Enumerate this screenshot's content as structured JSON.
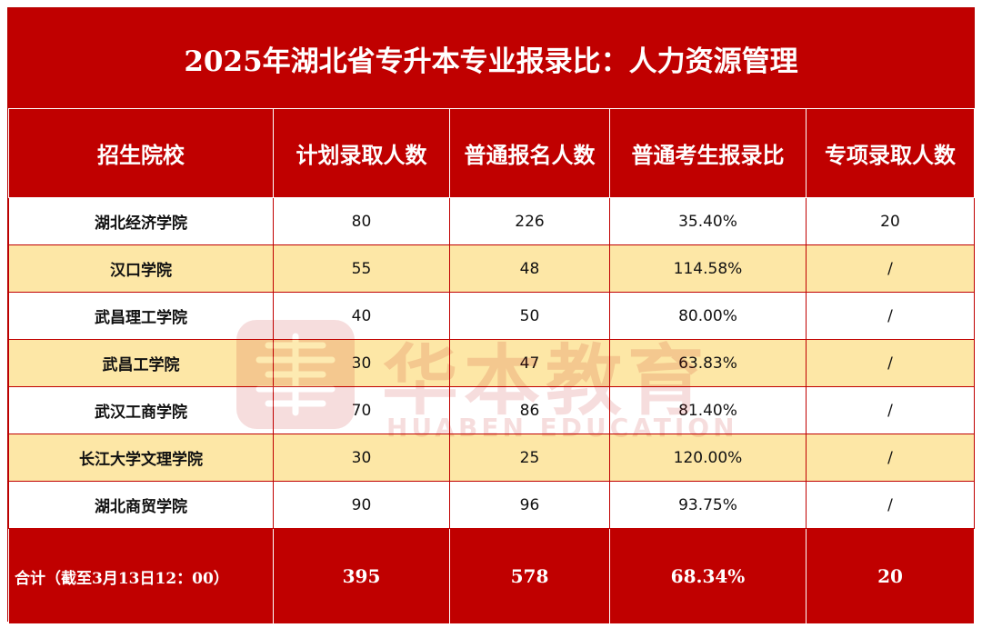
{
  "title": "2025年湖北省专升本专业报录比：人力资源管理",
  "colors": {
    "header_red": "#c00000",
    "stripe_yellow": "#fde7a6",
    "row_white": "#ffffff"
  },
  "columns": [
    "招生院校",
    "计划录取人数",
    "普通报名人数",
    "普通考生报录比",
    "专项录取人数"
  ],
  "rows": [
    {
      "school": "湖北经济学院",
      "planned": "80",
      "applicants": "226",
      "ratio": "35.40%",
      "special": "20"
    },
    {
      "school": "汉口学院",
      "planned": "55",
      "applicants": "48",
      "ratio": "114.58%",
      "special": "/"
    },
    {
      "school": "武昌理工学院",
      "planned": "40",
      "applicants": "50",
      "ratio": "80.00%",
      "special": "/"
    },
    {
      "school": "武昌工学院",
      "planned": "30",
      "applicants": "47",
      "ratio": "63.83%",
      "special": "/"
    },
    {
      "school": "武汉工商学院",
      "planned": "70",
      "applicants": "86",
      "ratio": "81.40%",
      "special": "/"
    },
    {
      "school": "长江大学文理学院",
      "planned": "30",
      "applicants": "25",
      "ratio": "120.00%",
      "special": "/"
    },
    {
      "school": "湖北商贸学院",
      "planned": "90",
      "applicants": "96",
      "ratio": "93.75%",
      "special": "/"
    }
  ],
  "total": {
    "label": "合计（截至3月13日12：00）",
    "planned": "395",
    "applicants": "578",
    "ratio": "68.34%",
    "special": "20"
  },
  "watermark": {
    "cn": "华本教育",
    "en": "HUABEN EDUCATION",
    "icon": "huaben-logo-icon"
  }
}
